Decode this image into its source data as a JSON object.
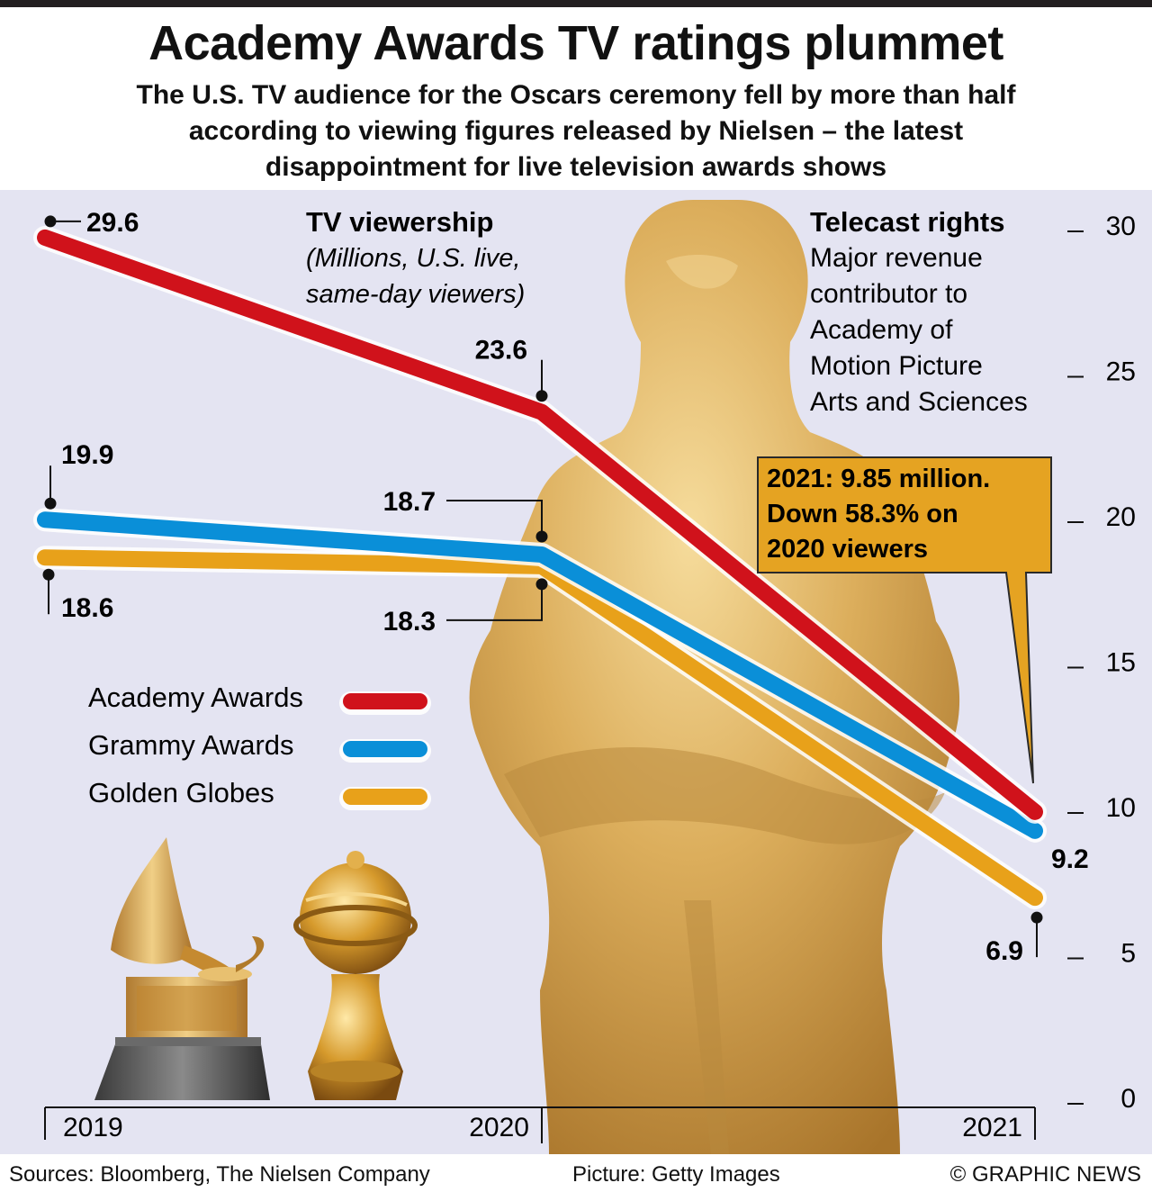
{
  "header": {
    "title": "Academy Awards TV ratings plummet",
    "subtitle_lines": [
      "The U.S. TV audience for the Oscars ceremony fell by more than half",
      "according to viewing figures released by Nielsen – the latest",
      "disappointment for live television awards shows"
    ]
  },
  "chart_data": {
    "type": "line",
    "title": "TV viewership",
    "subtitle": "(Millions, U.S. live, same-day viewers)",
    "x": [
      "2019",
      "2020",
      "2021"
    ],
    "ylim": [
      0,
      30
    ],
    "yticks": [
      0,
      5,
      10,
      15,
      20,
      25,
      30
    ],
    "y_axis_side": "right",
    "series": [
      {
        "name": "Academy Awards",
        "values": [
          29.6,
          23.6,
          9.85
        ],
        "color": "#d0121b"
      },
      {
        "name": "Grammy Awards",
        "values": [
          19.9,
          18.7,
          9.2
        ],
        "color": "#0a8fd8"
      },
      {
        "name": "Golden Globes",
        "values": [
          18.6,
          18.3,
          6.9
        ],
        "color": "#e8a11a"
      }
    ],
    "data_labels": [
      {
        "series": "Academy Awards",
        "x": "2019",
        "text": "29.6"
      },
      {
        "series": "Academy Awards",
        "x": "2020",
        "text": "23.6"
      },
      {
        "series": "Grammy Awards",
        "x": "2019",
        "text": "19.9"
      },
      {
        "series": "Grammy Awards",
        "x": "2020",
        "text": "18.7"
      },
      {
        "series": "Grammy Awards",
        "x": "2021",
        "text": "9.2"
      },
      {
        "series": "Golden Globes",
        "x": "2019",
        "text": "18.6"
      },
      {
        "series": "Golden Globes",
        "x": "2020",
        "text": "18.3"
      },
      {
        "series": "Golden Globes",
        "x": "2021",
        "text": "6.9"
      }
    ],
    "legend_placement": "left",
    "annotations": {
      "callout_lines": [
        "2021: 9.85 million.",
        "Down 58.3% on",
        "2020 viewers"
      ],
      "side_note_title": "Telecast rights",
      "side_note_lines": [
        "Major revenue",
        "contributor to",
        "Academy of",
        "Motion Picture",
        "Arts and Sciences"
      ]
    }
  },
  "colors": {
    "panel_bg": "#e4e4f2",
    "statue_gold": "#d4a14a",
    "callout_bg": "#e5a322"
  },
  "pictures": [
    "oscar-statue",
    "grammy-gramophone",
    "golden-globe"
  ],
  "footer": {
    "sources": "Sources: Bloomberg, The Nielsen Company",
    "picture_credit": "Picture: Getty Images",
    "copyright": "© GRAPHIC NEWS"
  }
}
